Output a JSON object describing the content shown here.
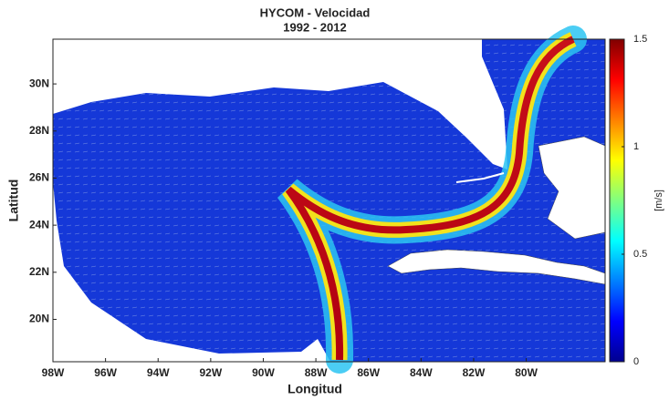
{
  "chart_data": {
    "type": "map",
    "title": "HYCOM - Velocidad",
    "subtitle": "1992 - 2012",
    "x_label": "Longitud",
    "y_label": "Latitud",
    "xlim": [
      -98,
      -77
    ],
    "ylim": [
      18.2,
      31.9
    ],
    "xticks": [
      {
        "value": -98,
        "label": "98W"
      },
      {
        "value": -96,
        "label": "96W"
      },
      {
        "value": -94,
        "label": "94W"
      },
      {
        "value": -92,
        "label": "92W"
      },
      {
        "value": -90,
        "label": "90W"
      },
      {
        "value": -88,
        "label": "88W"
      },
      {
        "value": -86,
        "label": "86W"
      },
      {
        "value": -84,
        "label": "84W"
      },
      {
        "value": -82,
        "label": "82W"
      },
      {
        "value": -80,
        "label": "80W"
      }
    ],
    "yticks": [
      {
        "value": 20,
        "label": "20N"
      },
      {
        "value": 22,
        "label": "22N"
      },
      {
        "value": 24,
        "label": "24N"
      },
      {
        "value": 26,
        "label": "26N"
      },
      {
        "value": 28,
        "label": "28N"
      },
      {
        "value": 30,
        "label": "30N"
      }
    ],
    "colorbar": {
      "label": "[m/s]",
      "lim": [
        0,
        1.5
      ],
      "ticks": [
        0,
        0.5,
        1,
        1.5
      ],
      "colormap": "jet"
    }
  }
}
